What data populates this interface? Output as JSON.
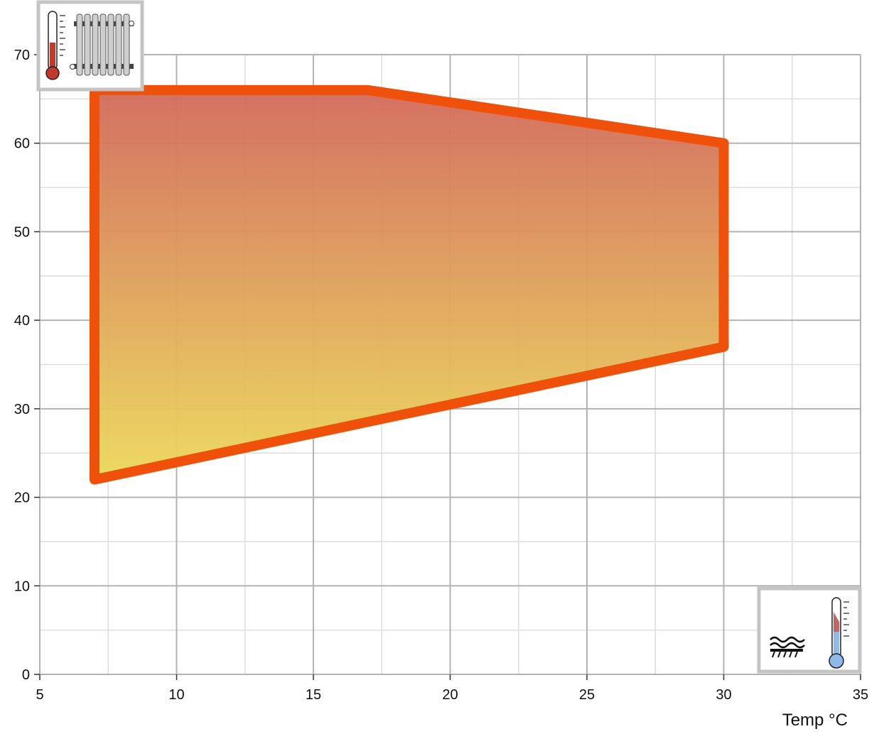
{
  "chart_data": {
    "type": "area",
    "title": "",
    "xlabel": "Temp °C",
    "ylabel": "",
    "xlim": [
      5,
      35
    ],
    "ylim": [
      0,
      70
    ],
    "x_ticks": [
      "5",
      "10",
      "15",
      "20",
      "25",
      "30",
      "35"
    ],
    "y_ticks": [
      "0",
      "10",
      "20",
      "30",
      "40",
      "50",
      "60",
      "70"
    ],
    "grid": true,
    "series": [
      {
        "x": [
          7,
          17,
          30,
          30,
          7
        ],
        "y": [
          66,
          66,
          60,
          37,
          22
        ]
      }
    ],
    "colors": {
      "outline": "#ef500a",
      "fill_top": "#d2695a",
      "fill_bottom": "#ecd85a",
      "grid_major": "#b3b3b3",
      "grid_minor": "#dddddd"
    },
    "icons": {
      "top_left": "thermometer-radiator-icon",
      "bottom_right": "floor-heating-thermometer-icon"
    }
  }
}
